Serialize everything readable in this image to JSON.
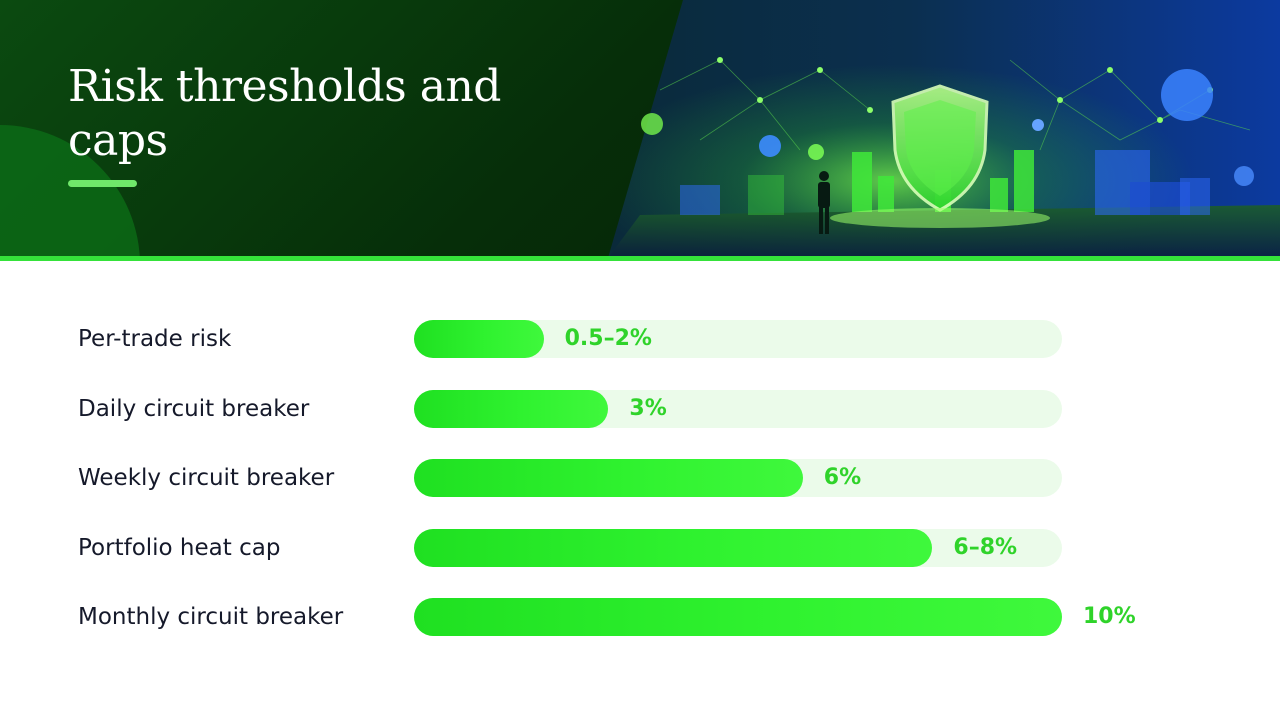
{
  "header": {
    "title": "Risk thresholds and caps"
  },
  "chart_data": {
    "type": "bar",
    "orientation": "horizontal",
    "categories": [
      "Per-trade risk",
      "Daily circuit breaker",
      "Weekly circuit breaker",
      "Portfolio heat cap",
      "Monthly circuit breaker"
    ],
    "values": [
      2,
      3,
      6,
      8,
      10
    ],
    "value_labels": [
      "0.5–2%",
      "3%",
      "6%",
      "6–8%",
      "10%"
    ],
    "xlim": [
      0,
      10
    ],
    "grid": false,
    "legend": "none",
    "colors": {
      "bar": "#2ff22f",
      "track": "#ebfbea",
      "value_label": "#2fd32a",
      "category_label": "#15192a"
    }
  },
  "hero_image": {
    "icon": "shield-icon",
    "colors": {
      "green_glow": "#4cff3a",
      "blue_sky": "#0d2f8a"
    }
  }
}
